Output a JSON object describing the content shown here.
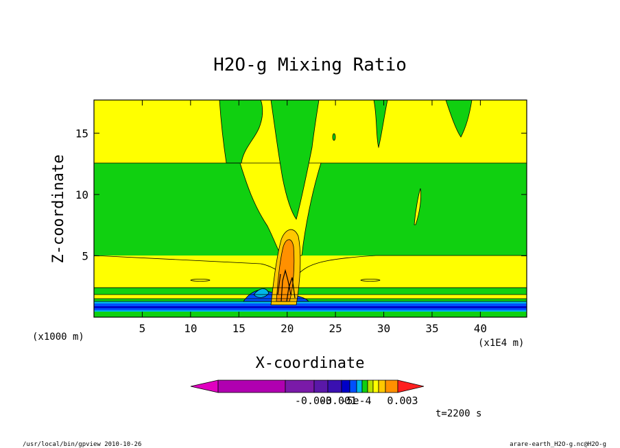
{
  "chart_data": {
    "type": "contour",
    "title": "H2O-g Mixing Ratio",
    "xlabel": "X-coordinate",
    "ylabel": "Z-coordinate",
    "x_unit": "(x1E4 m)",
    "y_unit": "(x1000 m)",
    "x_ticks": [
      5,
      10,
      15,
      20,
      25,
      30,
      35,
      40
    ],
    "y_ticks": [
      5,
      10,
      15
    ],
    "xlim": [
      0,
      44.8
    ],
    "ylim": [
      0,
      17.7
    ],
    "colorbar": {
      "colors": [
        "#e000c0",
        "#b000b0",
        "#7a1aa8",
        "#5a18a8",
        "#3a10b0",
        "#0000c8",
        "#0050ff",
        "#00b8e8",
        "#10d010",
        "#b8e000",
        "#ffff00",
        "#ffc800",
        "#ff9000",
        "#ff2020"
      ],
      "labels": [
        "-0.003",
        "-0.001",
        "-5e-4",
        "0.003"
      ]
    },
    "annotation": "t=2200 s",
    "footer_left": "/usr/local/bin/gpview  2010-10-26",
    "footer_right": "arare-earth_H2O-g.nc@H2O-g"
  }
}
